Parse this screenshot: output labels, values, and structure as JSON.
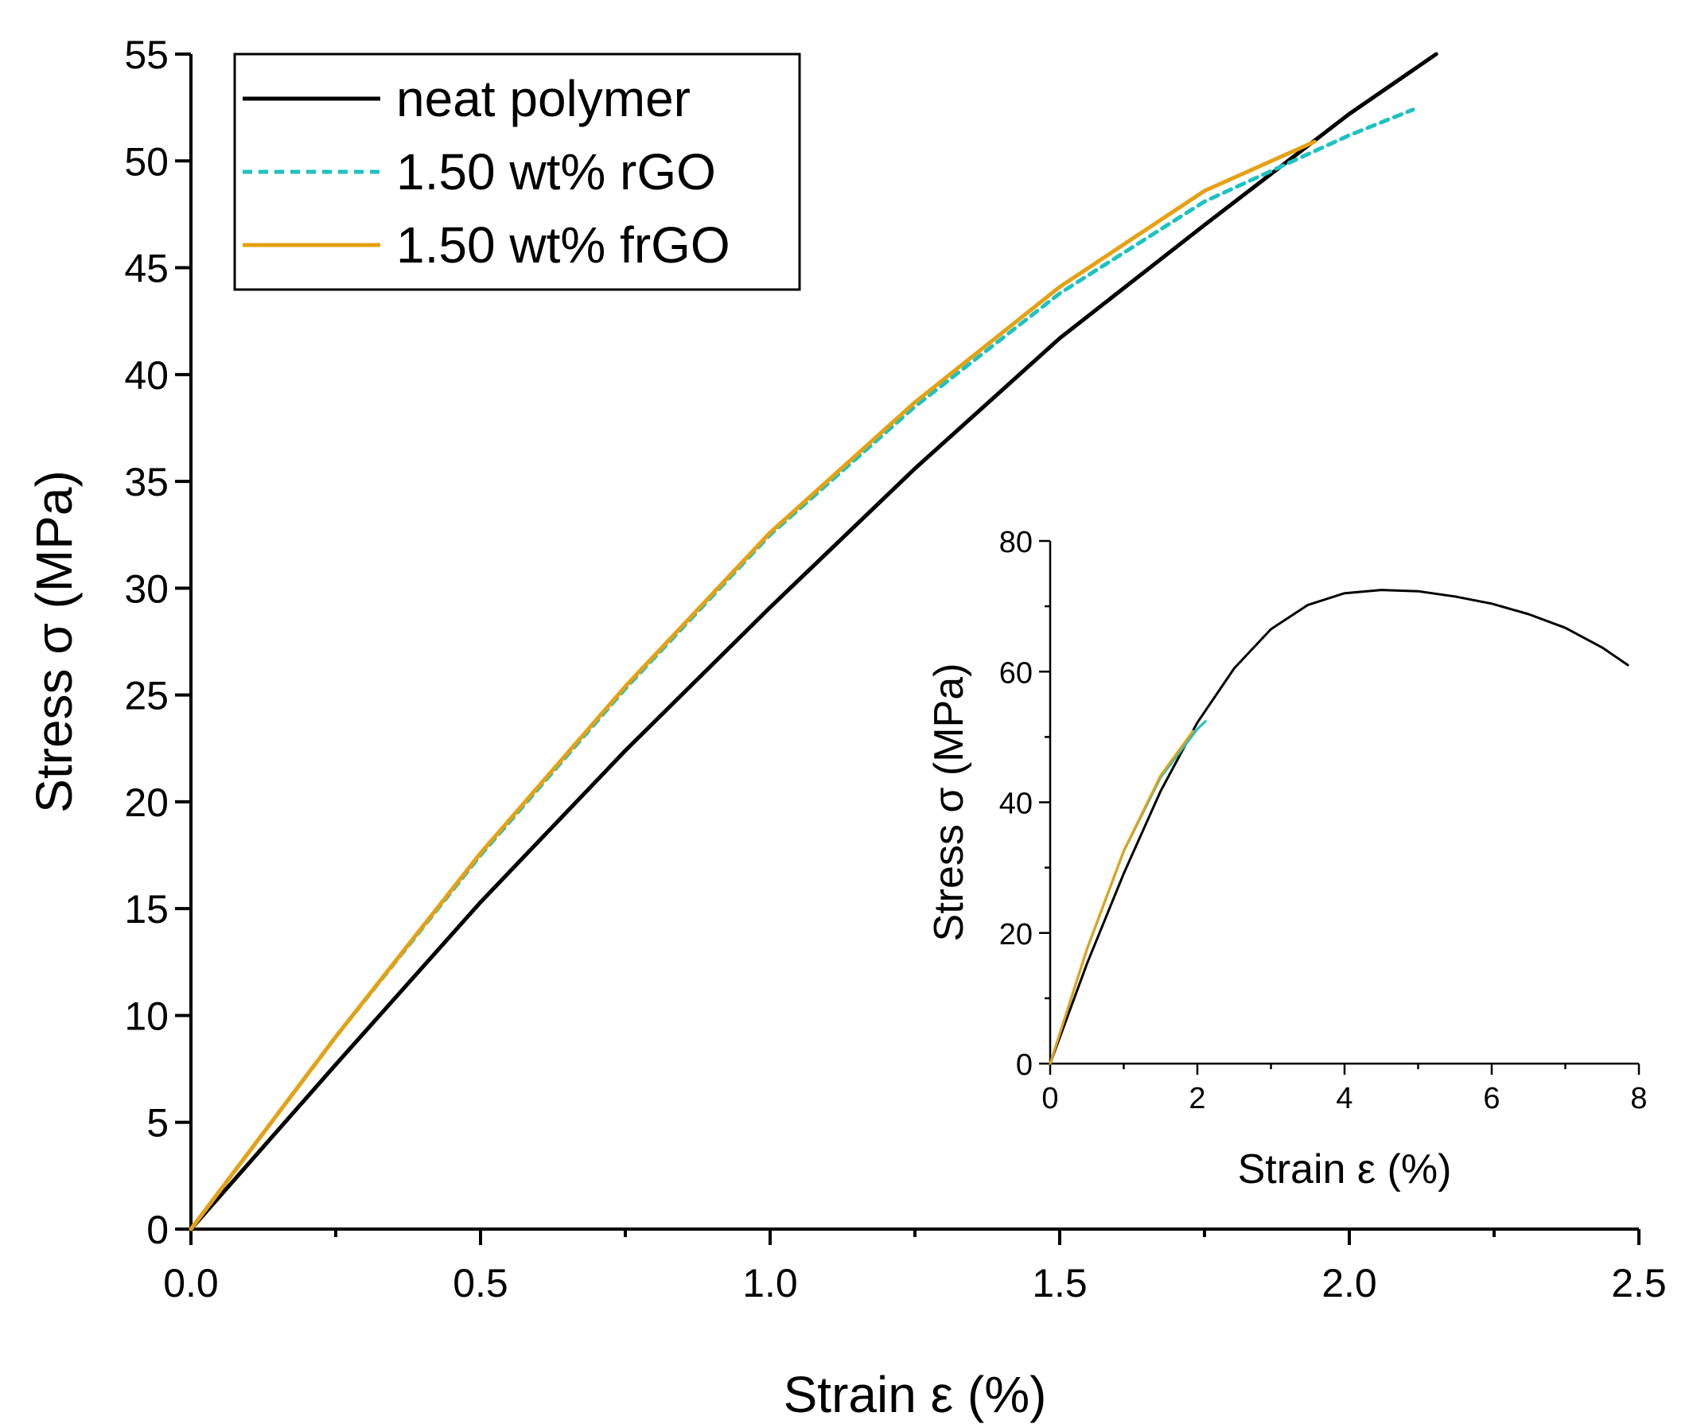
{
  "chart_data": [
    {
      "type": "line",
      "name": "main",
      "xlabel": "Strain ε (%)",
      "ylabel": "Stress σ (MPa)",
      "xlim": [
        0,
        2.5
      ],
      "ylim": [
        0,
        55
      ],
      "xticks": [
        "0.0",
        "0.5",
        "1.0",
        "1.5",
        "2.0",
        "2.5"
      ],
      "yticks": [
        "0",
        "5",
        "10",
        "15",
        "20",
        "25",
        "30",
        "35",
        "40",
        "45",
        "50",
        "55"
      ],
      "legend_position": "top-left",
      "series": [
        {
          "name": "neat polymer",
          "color": "#000000",
          "style": "solid",
          "x": [
            0,
            0.25,
            0.5,
            0.75,
            1.0,
            1.25,
            1.5,
            1.75,
            2.0,
            2.15
          ],
          "y": [
            0,
            7.7,
            15.3,
            22.4,
            29.1,
            35.6,
            41.7,
            47.0,
            52.2,
            55.0
          ]
        },
        {
          "name": "1.50 wt% rGO",
          "color": "#1ec2c2",
          "style": "dashed",
          "x": [
            0,
            0.25,
            0.5,
            0.75,
            1.0,
            1.25,
            1.5,
            1.75,
            2.0,
            2.11
          ],
          "y": [
            0,
            9.0,
            17.5,
            25.3,
            32.5,
            38.5,
            43.8,
            48.1,
            51.2,
            52.4
          ]
        },
        {
          "name": "1.50 wt% frGO",
          "color": "#e6a111",
          "style": "solid",
          "x": [
            0,
            0.25,
            0.5,
            0.75,
            1.0,
            1.25,
            1.5,
            1.75,
            1.94
          ],
          "y": [
            0,
            9.0,
            17.6,
            25.4,
            32.6,
            38.7,
            44.1,
            48.6,
            50.9
          ]
        }
      ]
    },
    {
      "type": "line",
      "name": "inset",
      "xlabel": "Strain ε (%)",
      "ylabel": "Stress σ (MPa)",
      "xlim": [
        0,
        8
      ],
      "ylim": [
        0,
        80
      ],
      "xticks": [
        "0",
        "2",
        "4",
        "6",
        "8"
      ],
      "yticks": [
        "0",
        "20",
        "40",
        "60",
        "80"
      ],
      "series": [
        {
          "name": "neat polymer",
          "color": "#000000",
          "style": "solid",
          "x": [
            0,
            0.5,
            1.0,
            1.5,
            2.0,
            2.5,
            3.0,
            3.5,
            4.0,
            4.5,
            5.0,
            5.5,
            6.0,
            6.5,
            7.0,
            7.5,
            7.85
          ],
          "y": [
            0,
            15.3,
            29.1,
            41.7,
            52.2,
            60.5,
            66.5,
            70.2,
            72.0,
            72.5,
            72.3,
            71.5,
            70.4,
            68.8,
            66.7,
            63.7,
            61.0
          ]
        },
        {
          "name": "1.50 wt% rGO",
          "color": "#1ec2c2",
          "style": "solid",
          "x": [
            0,
            0.5,
            1.0,
            1.5,
            2.0,
            2.11
          ],
          "y": [
            0,
            17.5,
            32.5,
            43.8,
            51.2,
            52.4
          ]
        },
        {
          "name": "1.50 wt% frGO",
          "color": "#e6a111",
          "style": "solid",
          "x": [
            0,
            0.5,
            1.0,
            1.5,
            1.94
          ],
          "y": [
            0,
            17.6,
            32.6,
            44.1,
            50.9
          ]
        }
      ]
    }
  ]
}
